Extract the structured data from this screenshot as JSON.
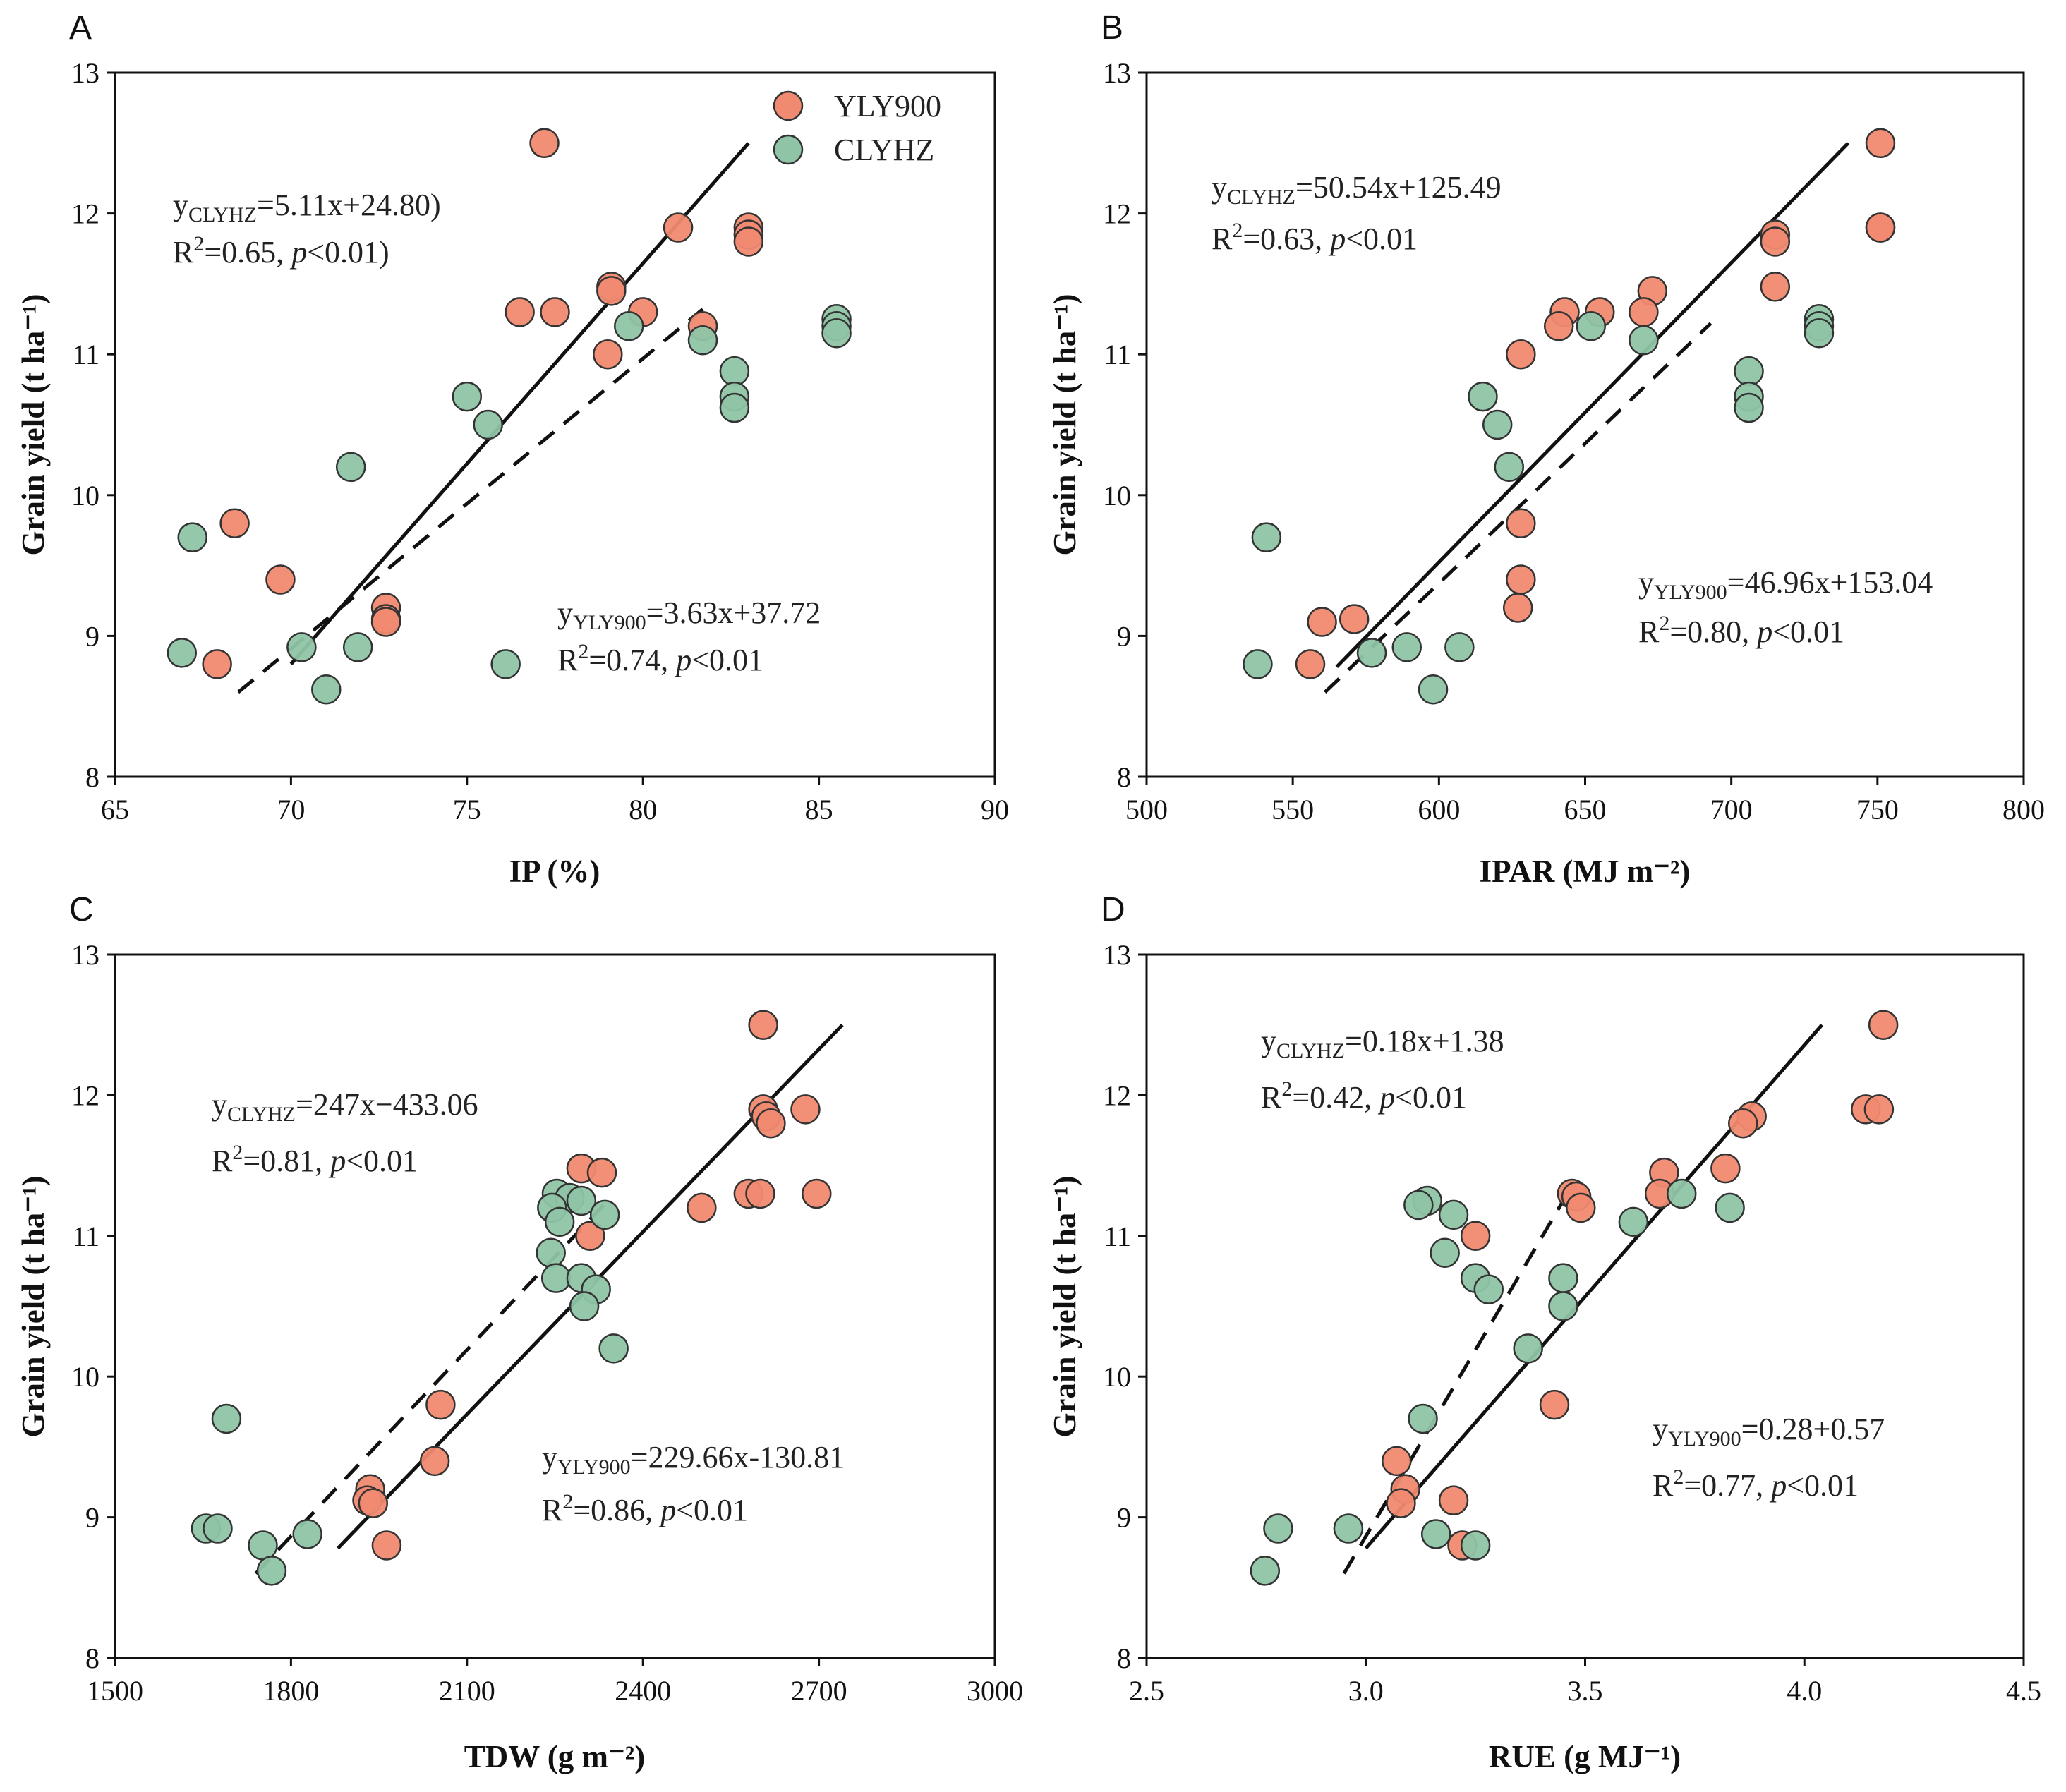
{
  "colors": {
    "YLY900": "#F08A70",
    "CLYHZ": "#8FC4A6",
    "marker_edge": "#333333",
    "axis": "#111111"
  },
  "legend": {
    "items": [
      "YLY900",
      "CLYHZ"
    ]
  },
  "chart_data": [
    {
      "panel": "A",
      "type": "scatter",
      "xlabel": "IP (%)",
      "ylabel": "Grain yield (t ha⁻¹)",
      "xlim": [
        65,
        90
      ],
      "ylim": [
        8,
        13
      ],
      "xticks": [
        65,
        70,
        75,
        80,
        85,
        90
      ],
      "xtick_labels": [
        "65",
        "70",
        "75",
        "80",
        "85",
        "90"
      ],
      "yticks": [
        8,
        9,
        10,
        11,
        12,
        13
      ],
      "ytick_labels": [
        "8",
        "9",
        "10",
        "11",
        "12",
        "13"
      ],
      "series": [
        {
          "name": "YLY900",
          "points": [
            [
              77.2,
              12.5
            ],
            [
              81,
              11.9
            ],
            [
              83,
              11.9
            ],
            [
              83,
              11.85
            ],
            [
              83,
              11.8
            ],
            [
              79.1,
              11.48
            ],
            [
              79.1,
              11.45
            ],
            [
              76.5,
              11.3
            ],
            [
              77.5,
              11.3
            ],
            [
              80,
              11.3
            ],
            [
              81.7,
              11.2
            ],
            [
              79,
              11.0
            ],
            [
              68.4,
              9.8
            ],
            [
              69.7,
              9.4
            ],
            [
              72.7,
              9.2
            ],
            [
              72.7,
              9.12
            ],
            [
              72.7,
              9.1
            ],
            [
              67.9,
              8.8
            ]
          ]
        },
        {
          "name": "CLYHZ",
          "points": [
            [
              85.5,
              11.25
            ],
            [
              85.5,
              11.2
            ],
            [
              85.5,
              11.15
            ],
            [
              79.6,
              11.2
            ],
            [
              81.7,
              11.1
            ],
            [
              82.6,
              10.88
            ],
            [
              82.6,
              10.7
            ],
            [
              82.6,
              10.62
            ],
            [
              75,
              10.7
            ],
            [
              75.6,
              10.5
            ],
            [
              71.7,
              10.2
            ],
            [
              67.2,
              9.7
            ],
            [
              66.9,
              8.88
            ],
            [
              70.3,
              8.92
            ],
            [
              71.9,
              8.92
            ],
            [
              71,
              8.62
            ],
            [
              76.1,
              8.8
            ]
          ]
        }
      ],
      "fits": [
        {
          "series": "CLYHZ",
          "style": "dashed",
          "x": [
            68.5,
            81.7
          ],
          "y": [
            8.6,
            11.32
          ]
        },
        {
          "series": "YLY900",
          "style": "solid",
          "x": [
            70,
            83
          ],
          "y": [
            8.8,
            12.5
          ]
        }
      ],
      "annotations": [
        {
          "id": "a1",
          "name": "eq-clyhz",
          "sub": "CLYHZ",
          "expr": "=5.11x+24.80)",
          "r2": "=0.65, ",
          "p": "<0.01)"
        },
        {
          "id": "a2",
          "name": "eq-yly900",
          "sub": "YLY900",
          "expr": "=3.63x+37.72",
          "r2": "=0.74, ",
          "p": "<0.01"
        }
      ],
      "legend": true
    },
    {
      "panel": "B",
      "type": "scatter",
      "xlabel": "IPAR (MJ m⁻²)",
      "ylabel": "Grain yield (t ha⁻¹)",
      "xlim": [
        500,
        800
      ],
      "ylim": [
        8,
        13
      ],
      "xticks": [
        500,
        550,
        600,
        650,
        700,
        750,
        800
      ],
      "xtick_labels": [
        "500",
        "550",
        "600",
        "650",
        "700",
        "750",
        "800"
      ],
      "yticks": [
        8,
        9,
        10,
        11,
        12,
        13
      ],
      "ytick_labels": [
        "8",
        "9",
        "10",
        "11",
        "12",
        "13"
      ],
      "series": [
        {
          "name": "YLY900",
          "points": [
            [
              751,
              12.5
            ],
            [
              751,
              11.9
            ],
            [
              751,
              11.9
            ],
            [
              715,
              11.85
            ],
            [
              715,
              11.8
            ],
            [
              715,
              11.48
            ],
            [
              673,
              11.45
            ],
            [
              670,
              11.3
            ],
            [
              643,
              11.3
            ],
            [
              655,
              11.3
            ],
            [
              641,
              11.2
            ],
            [
              628,
              11.0
            ],
            [
              628,
              9.8
            ],
            [
              628,
              9.4
            ],
            [
              627,
              9.2
            ],
            [
              560,
              9.1
            ],
            [
              571,
              9.12
            ],
            [
              556,
              8.8
            ]
          ]
        },
        {
          "name": "CLYHZ",
          "points": [
            [
              730,
              11.25
            ],
            [
              730,
              11.2
            ],
            [
              730,
              11.15
            ],
            [
              652,
              11.2
            ],
            [
              670,
              11.1
            ],
            [
              706,
              10.88
            ],
            [
              706,
              10.7
            ],
            [
              706,
              10.62
            ],
            [
              615,
              10.7
            ],
            [
              620,
              10.5
            ],
            [
              624,
              10.2
            ],
            [
              541,
              9.7
            ],
            [
              538,
              8.8
            ],
            [
              577,
              8.88
            ],
            [
              589,
              8.92
            ],
            [
              607,
              8.92
            ],
            [
              598,
              8.62
            ]
          ]
        }
      ],
      "fits": [
        {
          "series": "CLYHZ",
          "style": "dashed",
          "x": [
            561,
            693
          ],
          "y": [
            8.6,
            11.22
          ]
        },
        {
          "series": "YLY900",
          "style": "solid",
          "x": [
            565,
            740
          ],
          "y": [
            8.78,
            12.5
          ]
        }
      ],
      "annotations": [
        {
          "id": "b1",
          "name": "eq-clyhz",
          "sub": "CLYHZ",
          "expr": "=50.54x+125.49",
          "r2": "=0.63, ",
          "p": "<0.01"
        },
        {
          "id": "b2",
          "name": "eq-yly900",
          "sub": "YLY900",
          "expr": "=46.96x+153.04",
          "r2": "=0.80, ",
          "p": "<0.01"
        }
      ],
      "legend": false
    },
    {
      "panel": "C",
      "type": "scatter",
      "xlabel": "TDW (g m⁻²)",
      "ylabel": "Grain yield (t ha⁻¹)",
      "xlim": [
        1500,
        3000
      ],
      "ylim": [
        8,
        13
      ],
      "xticks": [
        1500,
        1800,
        2100,
        2400,
        2700,
        3000
      ],
      "xtick_labels": [
        "1500",
        "1800",
        "2100",
        "2400",
        "2700",
        "3000"
      ],
      "yticks": [
        8,
        9,
        10,
        11,
        12,
        13
      ],
      "ytick_labels": [
        "8",
        "9",
        "10",
        "11",
        "12",
        "13"
      ],
      "series": [
        {
          "name": "YLY900",
          "points": [
            [
              2605,
              12.5
            ],
            [
              2605,
              11.9
            ],
            [
              2677,
              11.9
            ],
            [
              2610,
              11.85
            ],
            [
              2618,
              11.8
            ],
            [
              2295,
              11.48
            ],
            [
              2330,
              11.45
            ],
            [
              2580,
              11.3
            ],
            [
              2600,
              11.3
            ],
            [
              2696,
              11.3
            ],
            [
              2500,
              11.2
            ],
            [
              2310,
              11.0
            ],
            [
              2055,
              9.8
            ],
            [
              2045,
              9.4
            ],
            [
              1935,
              9.2
            ],
            [
              1930,
              9.12
            ],
            [
              1940,
              9.1
            ],
            [
              1963,
              8.8
            ]
          ]
        },
        {
          "name": "CLYHZ",
          "points": [
            [
              2253,
              11.3
            ],
            [
              2275,
              11.27
            ],
            [
              2295,
              11.25
            ],
            [
              2245,
              11.2
            ],
            [
              2335,
              11.15
            ],
            [
              2258,
              11.1
            ],
            [
              2243,
              10.88
            ],
            [
              2252,
              10.7
            ],
            [
              2295,
              10.7
            ],
            [
              2320,
              10.62
            ],
            [
              2300,
              10.5
            ],
            [
              2350,
              10.2
            ],
            [
              1690,
              9.7
            ],
            [
              1655,
              8.92
            ],
            [
              1675,
              8.92
            ],
            [
              1828,
              8.88
            ],
            [
              1752,
              8.8
            ],
            [
              1767,
              8.62
            ]
          ]
        }
      ],
      "fits": [
        {
          "series": "CLYHZ",
          "style": "dashed",
          "x": [
            1740,
            2340
          ],
          "y": [
            8.6,
            11.25
          ]
        },
        {
          "series": "YLY900",
          "style": "solid",
          "x": [
            1880,
            2740
          ],
          "y": [
            8.78,
            12.5
          ]
        }
      ],
      "annotations": [
        {
          "id": "c1",
          "name": "eq-clyhz",
          "sub": "CLYHZ",
          "expr": "=247x−433.06",
          "r2": "=0.81, ",
          "p": "<0.01"
        },
        {
          "id": "c2",
          "name": "eq-yly900",
          "sub": "YLY900",
          "expr": "=229.66x-130.81",
          "r2": "=0.86,  ",
          "p": "<0.01"
        }
      ],
      "legend": false
    },
    {
      "panel": "D",
      "type": "scatter",
      "xlabel": "RUE (g MJ⁻¹)",
      "ylabel": "Grain yield (t ha⁻¹)",
      "xlim": [
        2.5,
        4.5
      ],
      "ylim": [
        8,
        13
      ],
      "xticks": [
        2.5,
        3.0,
        3.5,
        4.0,
        4.5
      ],
      "xtick_labels": [
        "2.5",
        "3.0",
        "3.5",
        "4.0",
        "4.5"
      ],
      "yticks": [
        8,
        9,
        10,
        11,
        12,
        13
      ],
      "ytick_labels": [
        "8",
        "9",
        "10",
        "11",
        "12",
        "13"
      ],
      "series": [
        {
          "name": "YLY900",
          "points": [
            [
              4.18,
              12.5
            ],
            [
              4.14,
              11.9
            ],
            [
              4.17,
              11.9
            ],
            [
              3.88,
              11.85
            ],
            [
              3.86,
              11.8
            ],
            [
              3.82,
              11.48
            ],
            [
              3.68,
              11.45
            ],
            [
              3.67,
              11.3
            ],
            [
              3.47,
              11.3
            ],
            [
              3.48,
              11.28
            ],
            [
              3.49,
              11.2
            ],
            [
              3.25,
              11.0
            ],
            [
              3.43,
              9.8
            ],
            [
              3.07,
              9.4
            ],
            [
              3.09,
              9.2
            ],
            [
              3.2,
              9.12
            ],
            [
              3.08,
              9.1
            ],
            [
              3.22,
              8.8
            ]
          ]
        },
        {
          "name": "CLYHZ",
          "points": [
            [
              3.14,
              11.25
            ],
            [
              3.12,
              11.22
            ],
            [
              3.2,
              11.15
            ],
            [
              3.83,
              11.2
            ],
            [
              3.61,
              11.1
            ],
            [
              3.72,
              11.3
            ],
            [
              3.18,
              10.88
            ],
            [
              3.25,
              10.7
            ],
            [
              3.28,
              10.62
            ],
            [
              3.45,
              10.7
            ],
            [
              3.45,
              10.5
            ],
            [
              3.37,
              10.2
            ],
            [
              3.13,
              9.7
            ],
            [
              2.8,
              8.92
            ],
            [
              2.96,
              8.92
            ],
            [
              3.16,
              8.88
            ],
            [
              3.25,
              8.8
            ],
            [
              2.77,
              8.62
            ]
          ]
        }
      ],
      "fits": [
        {
          "series": "CLYHZ",
          "style": "dashed",
          "x": [
            2.95,
            3.45
          ],
          "y": [
            8.6,
            11.25
          ]
        },
        {
          "series": "YLY900",
          "style": "solid",
          "x": [
            3.0,
            4.04
          ],
          "y": [
            8.78,
            12.5
          ]
        }
      ],
      "annotations": [
        {
          "id": "d1",
          "name": "eq-clyhz",
          "sub": "CLYHZ",
          "expr": "=0.18x+1.38",
          "r2": "=0.42, ",
          "p": "<0.01"
        },
        {
          "id": "d2",
          "name": "eq-yly900",
          "sub": "YLY900",
          "expr": "=0.28+0.57",
          "r2": "=0.77,  ",
          "p": "<0.01"
        }
      ],
      "legend": false
    }
  ]
}
